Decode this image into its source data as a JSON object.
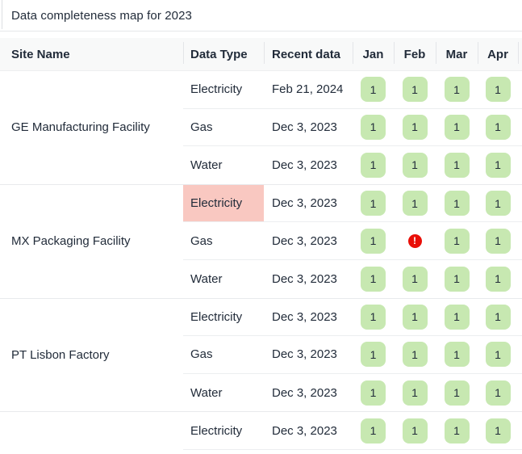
{
  "title": "Data completeness map for 2023",
  "colors": {
    "ok_badge_bg": "#c7e8b1",
    "alert_cell_bg": "#f9c8c1",
    "error_icon_bg": "#e90f08",
    "header_bg": "#f8f9f9",
    "text": "#222c3a"
  },
  "table": {
    "columns": [
      "Site Name",
      "Data Type",
      "Recent data",
      "Jan",
      "Feb",
      "Mar",
      "Apr"
    ],
    "groups": [
      {
        "site": "GE Manufacturing Facility",
        "rows": [
          {
            "data_type": "Electricity",
            "recent": "Feb 21, 2024",
            "highlight": false,
            "months": [
              "1",
              "1",
              "1",
              "1"
            ]
          },
          {
            "data_type": "Gas",
            "recent": "Dec 3, 2023",
            "highlight": false,
            "months": [
              "1",
              "1",
              "1",
              "1"
            ]
          },
          {
            "data_type": "Water",
            "recent": "Dec 3, 2023",
            "highlight": false,
            "months": [
              "1",
              "1",
              "1",
              "1"
            ]
          }
        ]
      },
      {
        "site": "MX Packaging Facility",
        "rows": [
          {
            "data_type": "Electricity",
            "recent": "Dec 3, 2023",
            "highlight": true,
            "months": [
              "1",
              "1",
              "1",
              "1"
            ]
          },
          {
            "data_type": "Gas",
            "recent": "Dec 3, 2023",
            "highlight": false,
            "months": [
              "1",
              "!",
              "1",
              "1"
            ]
          },
          {
            "data_type": "Water",
            "recent": "Dec 3, 2023",
            "highlight": false,
            "months": [
              "1",
              "1",
              "1",
              "1"
            ]
          }
        ]
      },
      {
        "site": "PT Lisbon Factory",
        "rows": [
          {
            "data_type": "Electricity",
            "recent": "Dec 3, 2023",
            "highlight": false,
            "months": [
              "1",
              "1",
              "1",
              "1"
            ]
          },
          {
            "data_type": "Gas",
            "recent": "Dec 3, 2023",
            "highlight": false,
            "months": [
              "1",
              "1",
              "1",
              "1"
            ]
          },
          {
            "data_type": "Water",
            "recent": "Dec 3, 2023",
            "highlight": false,
            "months": [
              "1",
              "1",
              "1",
              "1"
            ]
          }
        ]
      },
      {
        "site": "",
        "rows": [
          {
            "data_type": "Electricity",
            "recent": "Dec 3, 2023",
            "highlight": false,
            "months": [
              "1",
              "1",
              "1",
              "1"
            ]
          }
        ]
      }
    ]
  }
}
